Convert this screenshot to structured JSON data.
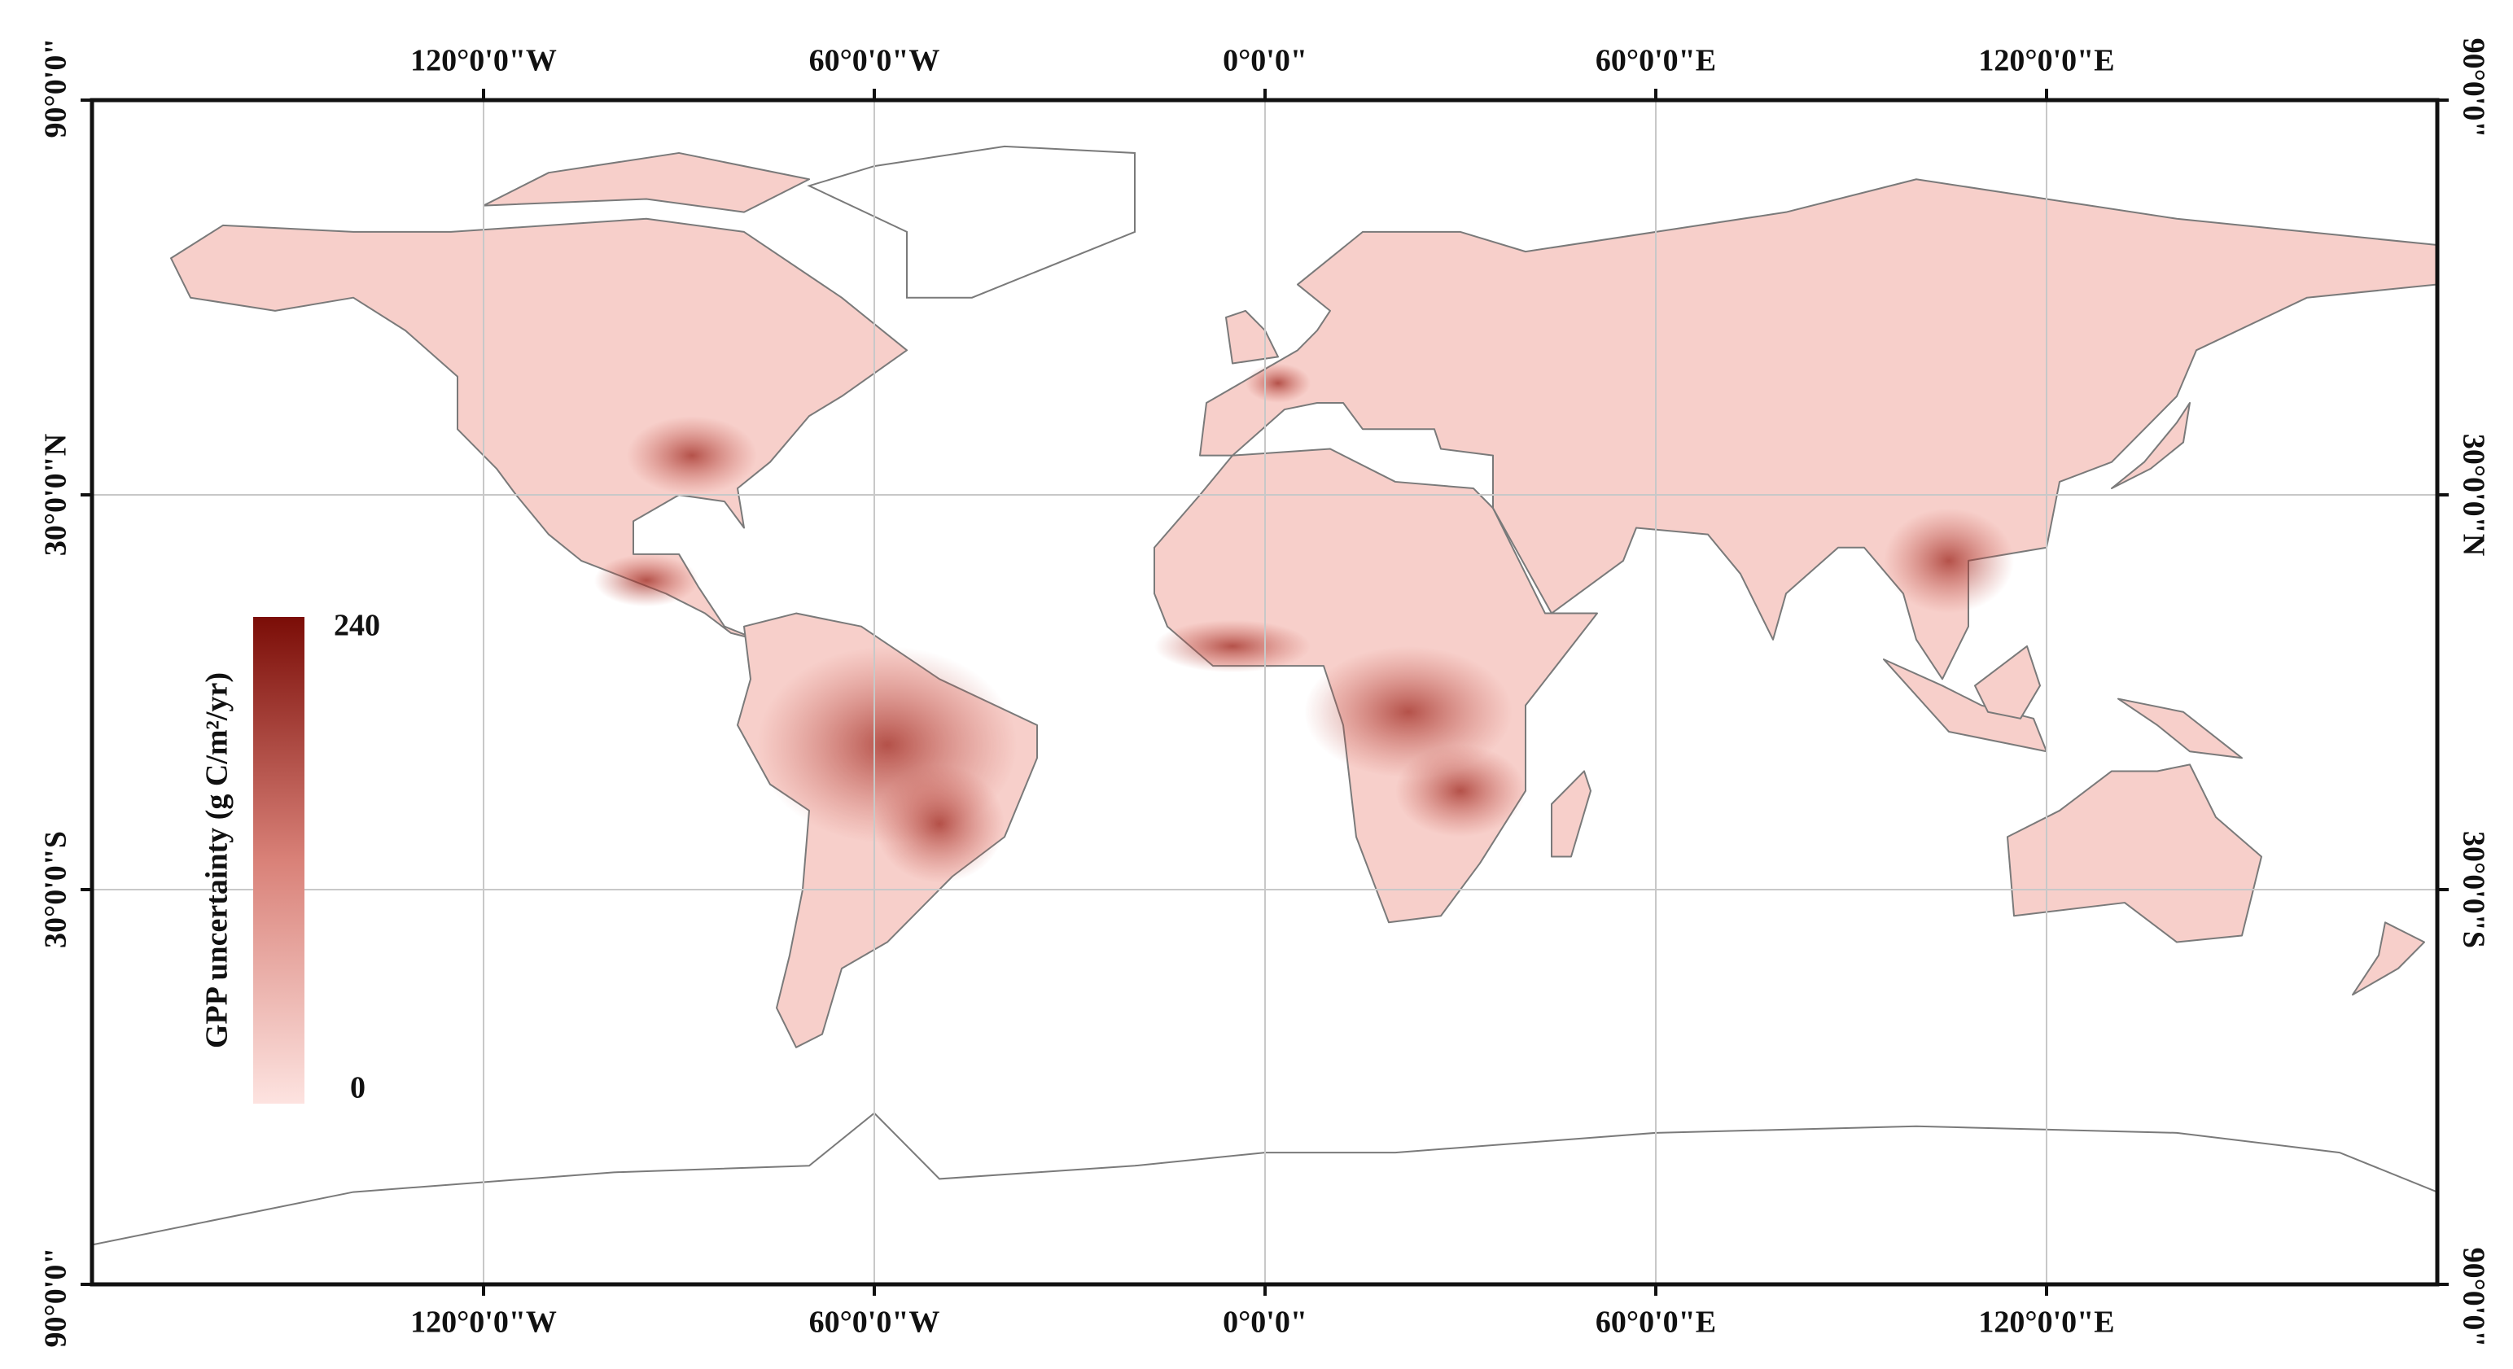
{
  "map": {
    "top_labels": [
      "120°0'0\"W",
      "60°0'0\"W",
      "0°0'0\"",
      "60°0'0\"E",
      "120°0'0\"E"
    ],
    "bottom_labels": [
      "120°0'0\"W",
      "60°0'0\"W",
      "0°0'0\"",
      "60°0'0\"E",
      "120°0'0\"E"
    ],
    "left_labels": [
      "90°0'0\"",
      "30°0'0\"N",
      "30°0'0\"S",
      "90°0'0\""
    ],
    "right_labels": [
      "90°0'0\"",
      "30°0'0\"N",
      "30°0'0\"S",
      "90°0'0\""
    ],
    "legend": {
      "title": "GPP uncertainty (g C/m²/yr)",
      "max": 240,
      "min": 0
    }
  }
}
